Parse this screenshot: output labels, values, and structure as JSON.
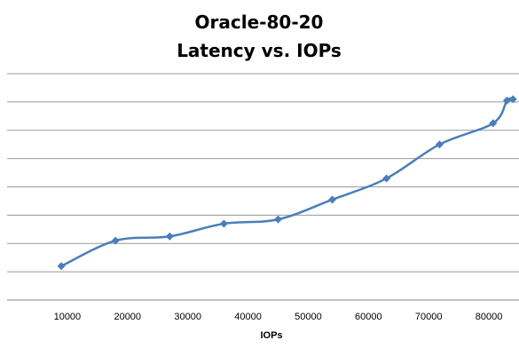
{
  "chart_data": {
    "type": "line",
    "title": "Oracle-80-20",
    "subtitle": "Latency vs. IOPs",
    "xlabel": "IOPs",
    "ylabel": "",
    "xlim": [
      0,
      85000
    ],
    "ylim": [
      0,
      8
    ],
    "x_ticks": [
      "10000",
      "20000",
      "30000",
      "40000",
      "50000",
      "60000",
      "70000",
      "80000"
    ],
    "y_ticks_labeled": false,
    "grid": "horizontal",
    "legend": "none",
    "series": [
      {
        "color": "#4a7ebb",
        "marker": "diamond",
        "points": [
          [
            9000,
            1.2
          ],
          [
            18000,
            2.1
          ],
          [
            27000,
            2.25
          ],
          [
            36000,
            2.7
          ],
          [
            45000,
            2.85
          ],
          [
            54000,
            3.55
          ],
          [
            63000,
            4.3
          ],
          [
            71800,
            5.5
          ],
          [
            80700,
            6.25
          ],
          [
            83000,
            7.05
          ],
          [
            84000,
            7.1
          ]
        ]
      }
    ]
  }
}
